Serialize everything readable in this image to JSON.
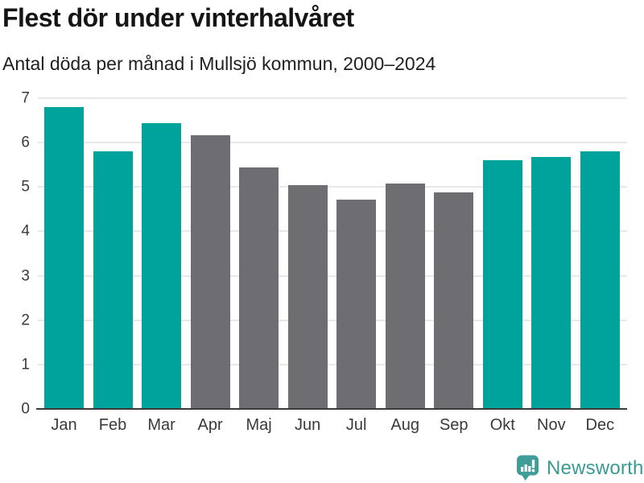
{
  "page": {
    "title": "Flest dör under vinterhalvåret",
    "subtitle": "Antal döda per månad i Mullsjö kommun, 2000–2024"
  },
  "chart_data": {
    "type": "bar",
    "title": "Flest dör under vinterhalvåret",
    "subtitle": "Antal döda per månad i Mullsjö kommun, 2000–2024",
    "categories": [
      "Jan",
      "Feb",
      "Mar",
      "Apr",
      "Maj",
      "Jun",
      "Jul",
      "Aug",
      "Sep",
      "Okt",
      "Nov",
      "Dec"
    ],
    "values": [
      6.8,
      5.8,
      6.44,
      6.16,
      5.44,
      5.04,
      4.72,
      5.08,
      4.88,
      5.6,
      5.68,
      5.8
    ],
    "highlighted_categories": [
      "Jan",
      "Feb",
      "Mar",
      "Okt",
      "Nov",
      "Dec"
    ],
    "bar_colors": {
      "highlight": "#00a39b",
      "default": "#6d6d72"
    },
    "ylim": [
      0,
      7
    ],
    "yticks": [
      0,
      1,
      2,
      3,
      4,
      5,
      6,
      7
    ],
    "grid": true,
    "legend": "none",
    "xlabel": "",
    "ylabel": ""
  },
  "footer": {
    "brand": "Newsworthy",
    "brand_color": "#3b9a94",
    "logo_icon": "newsworthy-bar-chart-bubble-icon",
    "logo_color": "#3f9e98"
  },
  "colors": {
    "background": "#ffffff",
    "grid": "#e8e8e8",
    "axis": "#3a3a3a",
    "title_text": "#151515"
  }
}
